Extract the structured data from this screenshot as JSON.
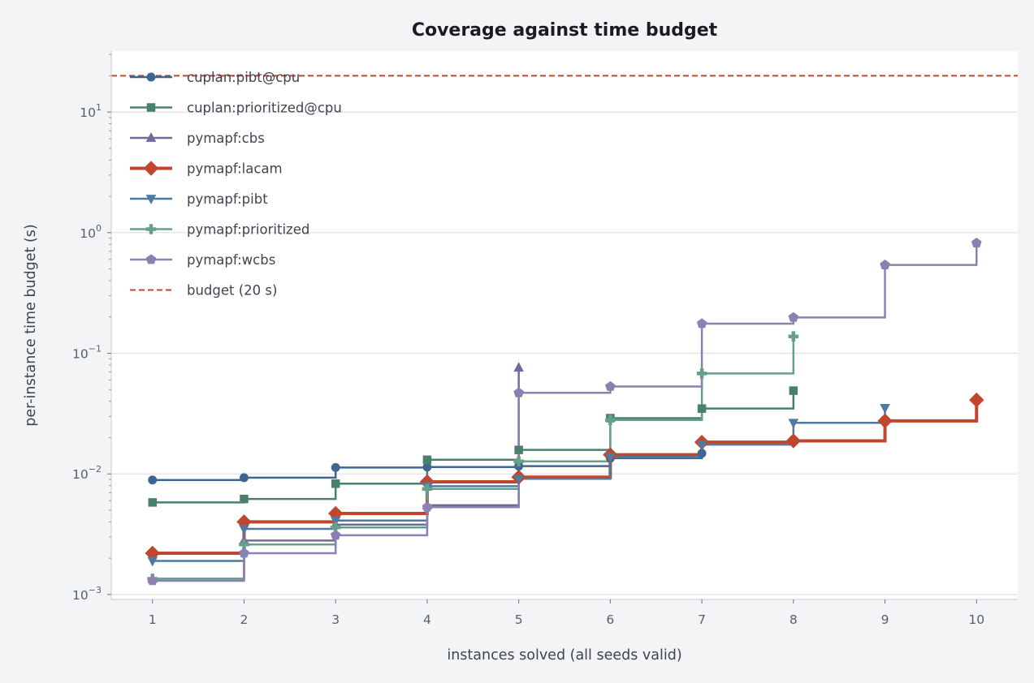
{
  "chart_data": {
    "type": "line",
    "step": "post",
    "title": "Coverage against time budget",
    "xlabel": "instances solved (all seeds valid)",
    "ylabel": "per-instance time budget (s)",
    "xlim": [
      0.55,
      10.45
    ],
    "ylim": [
      0.00091,
      32
    ],
    "yscale": "log",
    "grid": "y",
    "legend_position": "top-left",
    "x_ticks": [
      "1",
      "2",
      "3",
      "4",
      "5",
      "6",
      "7",
      "8",
      "9",
      "10"
    ],
    "y_ticks": [
      {
        "value": 0.001,
        "base": "10",
        "exp": "−3"
      },
      {
        "value": 0.01,
        "base": "10",
        "exp": "−2"
      },
      {
        "value": 0.1,
        "base": "10",
        "exp": "−1"
      },
      {
        "value": 1,
        "base": "10",
        "exp": "0"
      },
      {
        "value": 10,
        "base": "10",
        "exp": "1"
      }
    ],
    "budget": {
      "name": "budget (20 s)",
      "value": 20,
      "color": "#c0472e"
    },
    "series": [
      {
        "name": "cuplan:pibt@cpu",
        "color": "#3d6690",
        "marker": "circle",
        "lw": 2.5,
        "x": [
          1,
          2,
          3,
          4,
          5,
          6,
          7
        ],
        "y": [
          0.0089,
          0.0093,
          0.0113,
          0.0114,
          0.0116,
          0.0135,
          0.0148
        ]
      },
      {
        "name": "cuplan:prioritized@cpu",
        "color": "#4a8070",
        "marker": "square",
        "lw": 2.5,
        "x": [
          1,
          2,
          3,
          4,
          5,
          6,
          7,
          8
        ],
        "y": [
          0.0058,
          0.0062,
          0.0083,
          0.0131,
          0.0158,
          0.029,
          0.0348,
          0.049
        ]
      },
      {
        "name": "pymapf:cbs",
        "color": "#76689a",
        "marker": "triangle-up",
        "lw": 2.5,
        "x": [
          1,
          2,
          3,
          4,
          5
        ],
        "y": [
          0.00135,
          0.0028,
          0.0038,
          0.0055,
          0.076
        ]
      },
      {
        "name": "pymapf:lacam",
        "color": "#c0472e",
        "marker": "diamond",
        "lw": 4,
        "x": [
          1,
          2,
          3,
          4,
          5,
          6,
          7,
          8,
          9,
          10
        ],
        "y": [
          0.0022,
          0.004,
          0.0047,
          0.0086,
          0.0094,
          0.0144,
          0.0183,
          0.0188,
          0.0275,
          0.041
        ]
      },
      {
        "name": "pymapf:pibt",
        "color": "#4f7aa0",
        "marker": "triangle-down",
        "lw": 2.5,
        "x": [
          1,
          2,
          3,
          4,
          5,
          6,
          7,
          8,
          9
        ],
        "y": [
          0.0019,
          0.0035,
          0.0041,
          0.0079,
          0.0091,
          0.0138,
          0.0175,
          0.0265,
          0.0352
        ]
      },
      {
        "name": "pymapf:prioritized",
        "color": "#66a08c",
        "marker": "plus",
        "lw": 2.5,
        "x": [
          1,
          2,
          3,
          4,
          5,
          6,
          7,
          8
        ],
        "y": [
          0.00135,
          0.0026,
          0.0036,
          0.0075,
          0.0127,
          0.028,
          0.068,
          0.138
        ]
      },
      {
        "name": "pymapf:wcbs",
        "color": "#8c80b2",
        "marker": "pentagon",
        "lw": 2.5,
        "x": [
          1,
          2,
          3,
          4,
          5,
          6,
          7,
          8,
          9,
          10
        ],
        "y": [
          0.0013,
          0.0022,
          0.0031,
          0.0053,
          0.047,
          0.053,
          0.176,
          0.198,
          0.54,
          0.82
        ]
      }
    ]
  }
}
